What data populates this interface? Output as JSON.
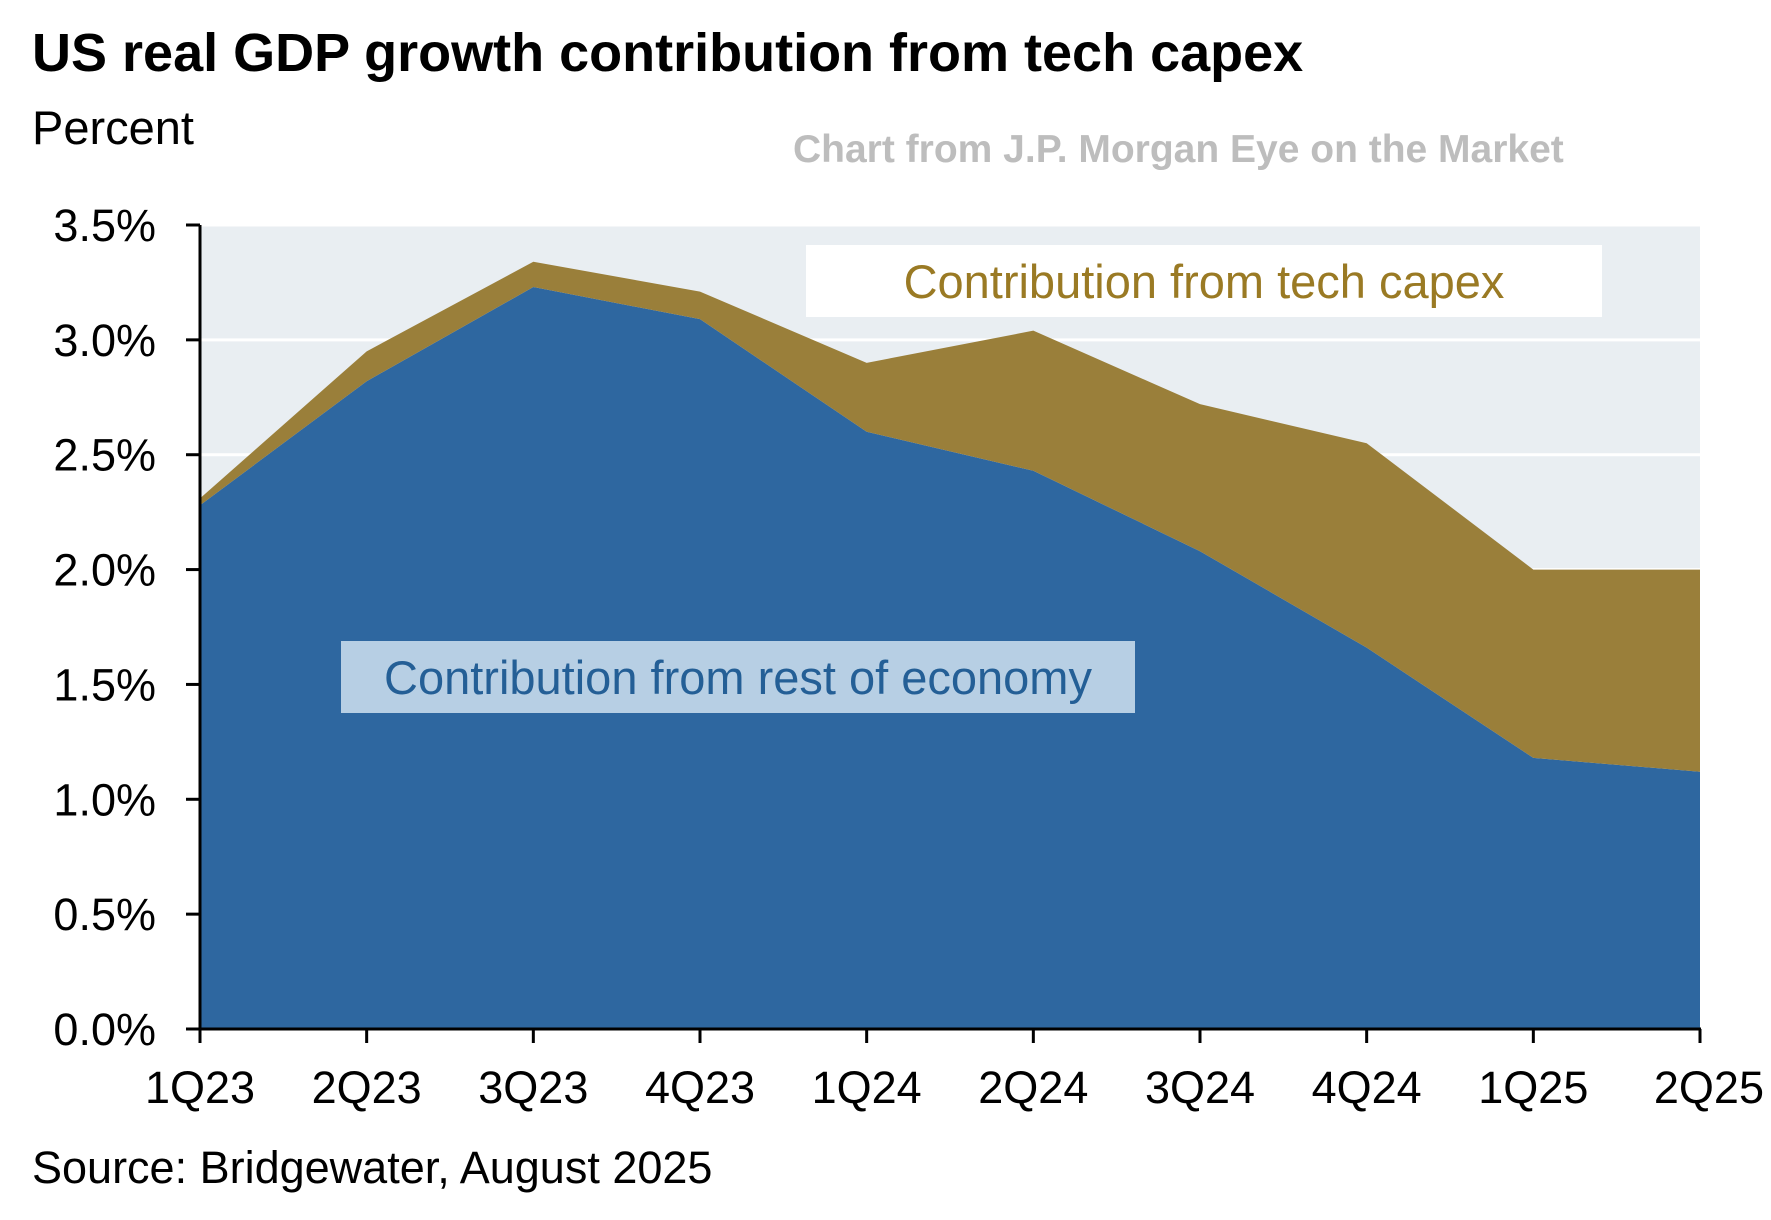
{
  "header": {
    "title": "US real GDP growth contribution from tech capex",
    "subtitle": "Percent",
    "credit": "Chart from J.P. Morgan Eye on the Market"
  },
  "footer": {
    "source": "Source: Bridgewater, August 2025"
  },
  "colors": {
    "rest_of_economy": "#2e67a0",
    "tech_capex": "#9a7f3a",
    "plot_background": "#e9eef2",
    "gridline": "#ffffff",
    "label_box_tech": "#ffffff",
    "label_box_rest": "#b7cfe4"
  },
  "chart_data": {
    "type": "area",
    "stacked": true,
    "categories": [
      "1Q23",
      "2Q23",
      "3Q23",
      "4Q23",
      "1Q24",
      "2Q24",
      "3Q24",
      "4Q24",
      "1Q25",
      "2Q25"
    ],
    "series": [
      {
        "name": "Contribution from rest of economy",
        "values": [
          2.28,
          2.82,
          3.23,
          3.09,
          2.6,
          2.43,
          2.08,
          1.66,
          1.18,
          1.12
        ]
      },
      {
        "name": "Contribution from tech capex",
        "values": [
          0.03,
          0.13,
          0.11,
          0.12,
          0.3,
          0.61,
          0.64,
          0.89,
          0.82,
          0.88
        ]
      }
    ],
    "totals": [
      2.31,
      2.95,
      3.34,
      3.21,
      2.9,
      3.04,
      2.72,
      2.55,
      2.0,
      2.0
    ],
    "y_ticks": [
      "0.0%",
      "0.5%",
      "1.0%",
      "1.5%",
      "2.0%",
      "2.5%",
      "3.0%",
      "3.5%"
    ],
    "ylim": [
      0,
      3.5
    ],
    "grid": true,
    "annotations": {
      "tech": "Contribution from tech capex",
      "rest": "Contribution from rest of economy"
    }
  }
}
